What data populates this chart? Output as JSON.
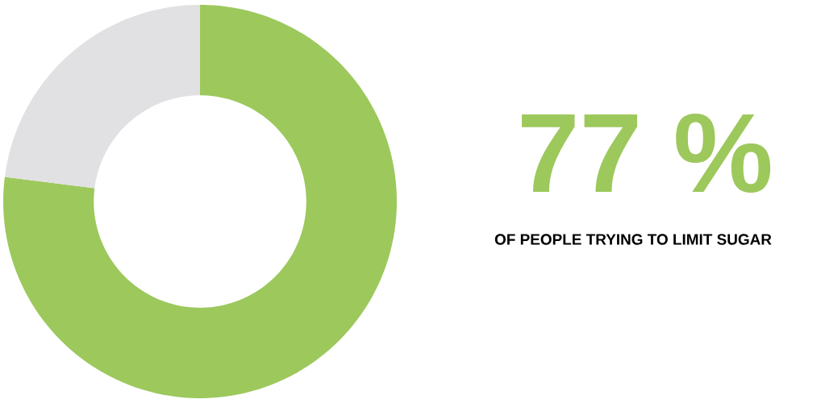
{
  "chart_data": {
    "type": "donut",
    "categories": [
      null,
      null
    ],
    "values": [
      77,
      23
    ],
    "colors": [
      "#9dc85c",
      "#e1e1e3"
    ],
    "annotations": [
      "77 %",
      "OF PEOPLE TRYING TO LIMIT SUGAR"
    ]
  }
}
